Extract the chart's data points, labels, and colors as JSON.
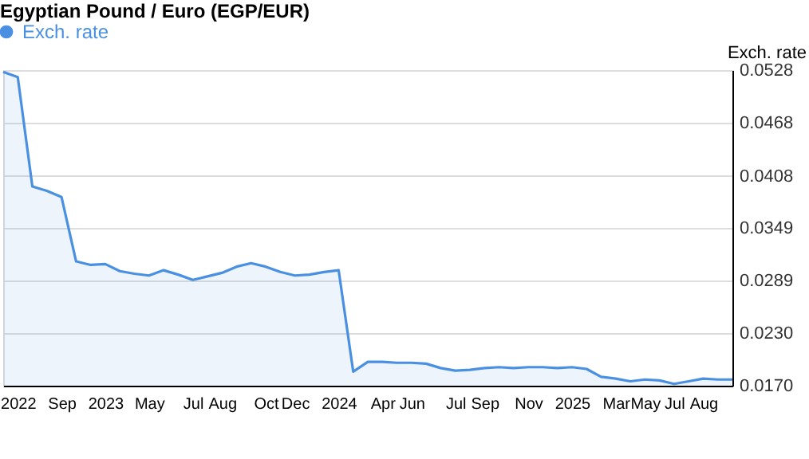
{
  "chart_data": {
    "type": "area",
    "title": "Egyptian Pound / Euro (EGP/EUR)",
    "ylabel": "Exch. rate",
    "categories": [
      null,
      "2022",
      null,
      null,
      "Sep",
      null,
      null,
      "2023",
      null,
      null,
      "May",
      null,
      null,
      "Jul",
      null,
      "Aug",
      null,
      null,
      "Oct",
      null,
      "Dec",
      null,
      null,
      "2024",
      null,
      null,
      "Apr",
      null,
      "Jun",
      null,
      null,
      "Jul",
      null,
      "Sep",
      null,
      null,
      "Nov",
      null,
      null,
      "2025",
      null,
      null,
      "Mar",
      null,
      "May",
      null,
      "Jul",
      null,
      "Aug",
      null,
      null
    ],
    "series": [
      {
        "name": "Exch. rate",
        "color": "#4a90e2",
        "values": [
          0.0526,
          0.052,
          0.0396,
          0.0391,
          0.0384,
          0.0311,
          0.0307,
          0.0308,
          0.03,
          0.0297,
          0.0295,
          0.0301,
          0.0296,
          0.029,
          0.0294,
          0.0298,
          0.0305,
          0.0309,
          0.0305,
          0.0299,
          0.0295,
          0.0296,
          0.0299,
          0.0301,
          0.0186,
          0.0197,
          0.0197,
          0.0196,
          0.0196,
          0.0195,
          0.019,
          0.0187,
          0.0188,
          0.019,
          0.0191,
          0.019,
          0.0191,
          0.0191,
          0.019,
          0.0191,
          0.0189,
          0.018,
          0.0178,
          0.0175,
          0.0177,
          0.0176,
          0.0172,
          0.0175,
          0.0178,
          0.0177,
          0.0177
        ]
      }
    ],
    "ylim": [
      0.017,
      0.0528
    ],
    "yticks": [
      {
        "value": 0.017,
        "label": "0.0170"
      },
      {
        "value": 0.023,
        "label": "0.0230"
      },
      0.0289,
      0.0349,
      0.0408,
      0.0468,
      0.0528
    ],
    "grid": "y",
    "legend": "top left"
  }
}
